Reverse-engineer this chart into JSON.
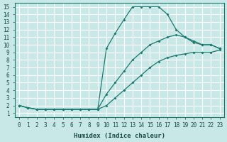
{
  "title": "",
  "xlabel": "Humidex (Indice chaleur)",
  "ylabel": "",
  "bg_color": "#c8e8e8",
  "grid_color": "#ffffff",
  "line_color": "#1a7a6e",
  "xlim": [
    -0.5,
    23.5
  ],
  "ylim": [
    0.5,
    15.5
  ],
  "yticks": [
    1,
    2,
    3,
    4,
    5,
    6,
    7,
    8,
    9,
    10,
    11,
    12,
    13,
    14,
    15
  ],
  "xticks": [
    0,
    1,
    2,
    3,
    4,
    5,
    6,
    7,
    8,
    9,
    10,
    11,
    12,
    13,
    14,
    15,
    16,
    17,
    18,
    19,
    20,
    21,
    22,
    23
  ],
  "line1_x": [
    0,
    1,
    2,
    3,
    4,
    5,
    6,
    7,
    8,
    9,
    10,
    11,
    12,
    13,
    14,
    15,
    16,
    17,
    18,
    19,
    20,
    21,
    22,
    23
  ],
  "line1_y": [
    2,
    1.7,
    1.5,
    1.5,
    1.5,
    1.5,
    1.5,
    1.5,
    1.5,
    1.5,
    9.5,
    11.5,
    13.3,
    15,
    15,
    15,
    15,
    14,
    12.0,
    11.0,
    10.3,
    10.0,
    10.0,
    9.5
  ],
  "line2_x": [
    0,
    1,
    2,
    3,
    4,
    5,
    6,
    7,
    8,
    9,
    10,
    11,
    12,
    13,
    14,
    15,
    16,
    17,
    18,
    19,
    20,
    21,
    22,
    23
  ],
  "line2_y": [
    2,
    1.7,
    1.5,
    1.5,
    1.5,
    1.5,
    1.5,
    1.5,
    1.5,
    1.5,
    3.5,
    5.0,
    6.5,
    8.0,
    9.0,
    10.0,
    10.5,
    11.0,
    11.3,
    11.0,
    10.5,
    10.0,
    10.0,
    9.5
  ],
  "line3_x": [
    0,
    1,
    2,
    3,
    4,
    5,
    6,
    7,
    8,
    9,
    10,
    11,
    12,
    13,
    14,
    15,
    16,
    17,
    18,
    19,
    20,
    21,
    22,
    23
  ],
  "line3_y": [
    2,
    1.7,
    1.5,
    1.5,
    1.5,
    1.5,
    1.5,
    1.5,
    1.5,
    1.5,
    2.0,
    3.0,
    4.0,
    5.0,
    6.0,
    7.0,
    7.8,
    8.3,
    8.6,
    8.8,
    9.0,
    9.0,
    9.0,
    9.3
  ]
}
